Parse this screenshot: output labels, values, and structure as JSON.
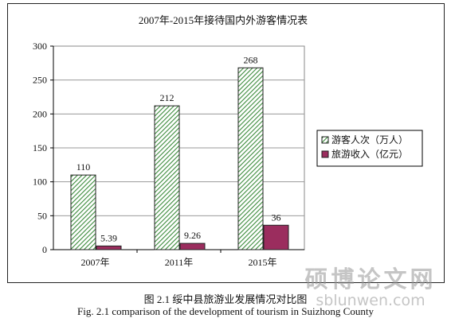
{
  "chart_data": {
    "type": "bar",
    "title": "2007年-2015年接待国内外游客情况表",
    "categories": [
      "2007年",
      "2011年",
      "2015年"
    ],
    "series": [
      {
        "name": "游客人次（万人）",
        "values": [
          110,
          212,
          268
        ],
        "labels": [
          "110",
          "212",
          "268"
        ],
        "color": "#2e7d32",
        "pattern": "hatch"
      },
      {
        "name": "旅游收入（亿元）",
        "values": [
          5.39,
          9.26,
          36
        ],
        "labels": [
          "5.39",
          "9.26",
          "36"
        ],
        "color": "#9b2d5e",
        "pattern": "solid"
      }
    ],
    "ylim": [
      0,
      300
    ],
    "yticks": [
      0,
      50,
      100,
      150,
      200,
      250,
      300
    ],
    "grid": true,
    "legend_position": "right"
  },
  "caption": {
    "cn": "图 2.1 绥中县旅游业发展情况对比图",
    "en": "Fig. 2.1 comparison of the development of tourism in Suizhong County"
  },
  "watermark": {
    "cn": "硕博论文网",
    "url": "sblunwen.com"
  }
}
